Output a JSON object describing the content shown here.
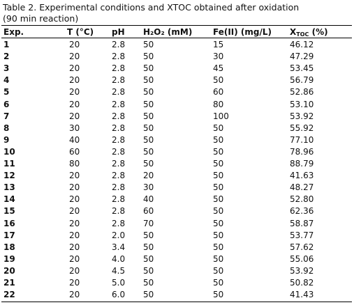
{
  "caption": {
    "line1": "Table 2. Experimental conditions and XTOC obtained after oxidation",
    "line2": "(90 min reaction)"
  },
  "table": {
    "header": [
      "Exp.",
      "T (°C)",
      "pH",
      "H₂O₂ (mM)",
      "Fe(II) (mg/L)"
    ],
    "header_xtoc": {
      "main": "X",
      "sub": "TOC",
      "rest": " (%)"
    },
    "rows": [
      [
        "1",
        "20",
        "2.8",
        "50",
        "15",
        "46.12"
      ],
      [
        "2",
        "20",
        "2.8",
        "50",
        "30",
        "47.29"
      ],
      [
        "3",
        "20",
        "2.8",
        "50",
        "45",
        "53.45"
      ],
      [
        "4",
        "20",
        "2.8",
        "50",
        "50",
        "56.79"
      ],
      [
        "5",
        "20",
        "2.8",
        "50",
        "60",
        "52.86"
      ],
      [
        "6",
        "20",
        "2.8",
        "50",
        "80",
        "53.10"
      ],
      [
        "7",
        "20",
        "2.8",
        "50",
        "100",
        "53.92"
      ],
      [
        "8",
        "30",
        "2.8",
        "50",
        "50",
        "55.92"
      ],
      [
        "9",
        "40",
        "2.8",
        "50",
        "50",
        "77.10"
      ],
      [
        "10",
        "60",
        "2.8",
        "50",
        "50",
        "78.96"
      ],
      [
        "11",
        "80",
        "2.8",
        "50",
        "50",
        "88.79"
      ],
      [
        "12",
        "20",
        "2.8",
        "20",
        "50",
        "41.63"
      ],
      [
        "13",
        "20",
        "2.8",
        "30",
        "50",
        "48.27"
      ],
      [
        "14",
        "20",
        "2.8",
        "40",
        "50",
        "52.80"
      ],
      [
        "15",
        "20",
        "2.8",
        "60",
        "50",
        "62.36"
      ],
      [
        "16",
        "20",
        "2.8",
        "70",
        "50",
        "58.87"
      ],
      [
        "17",
        "20",
        "2.0",
        "50",
        "50",
        "53.77"
      ],
      [
        "18",
        "20",
        "3.4",
        "50",
        "50",
        "57.62"
      ],
      [
        "19",
        "20",
        "4.0",
        "50",
        "50",
        "55.06"
      ],
      [
        "20",
        "20",
        "4.5",
        "50",
        "50",
        "53.92"
      ],
      [
        "21",
        "20",
        "5.0",
        "50",
        "50",
        "50.82"
      ],
      [
        "22",
        "20",
        "6.0",
        "50",
        "50",
        "41.43"
      ]
    ]
  }
}
